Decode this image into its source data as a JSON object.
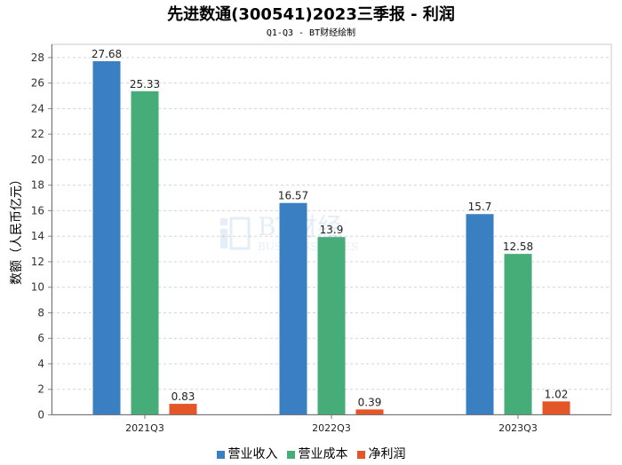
{
  "title": "先进数通(300541)2023三季报 - 利润",
  "subtitle": "Q1-Q3 - BT财经绘制",
  "watermark": {
    "brand": "BT财经",
    "sub": "BUSINESS TIMES"
  },
  "chart_data": {
    "type": "bar",
    "categories": [
      "2021Q3",
      "2022Q3",
      "2023Q3"
    ],
    "series": [
      {
        "name": "营业收入",
        "values": [
          27.68,
          16.57,
          15.7
        ],
        "labels": [
          "27.68",
          "16.57",
          "15.7"
        ],
        "color": "#3a7fc1"
      },
      {
        "name": "营业成本",
        "values": [
          25.33,
          13.9,
          12.58
        ],
        "labels": [
          "25.33",
          "13.9",
          "12.58"
        ],
        "color": "#46ad78"
      },
      {
        "name": "净利润",
        "values": [
          0.83,
          0.39,
          1.02
        ],
        "labels": [
          "0.83",
          "0.39",
          "1.02"
        ],
        "color": "#e45528"
      }
    ],
    "ylabel": "数额（人民币亿元）",
    "ylim": [
      0,
      29
    ],
    "yticks": [
      0,
      2,
      4,
      6,
      8,
      10,
      12,
      14,
      16,
      18,
      20,
      22,
      24,
      26,
      28
    ],
    "grid": true,
    "legend_position": "bottom"
  }
}
